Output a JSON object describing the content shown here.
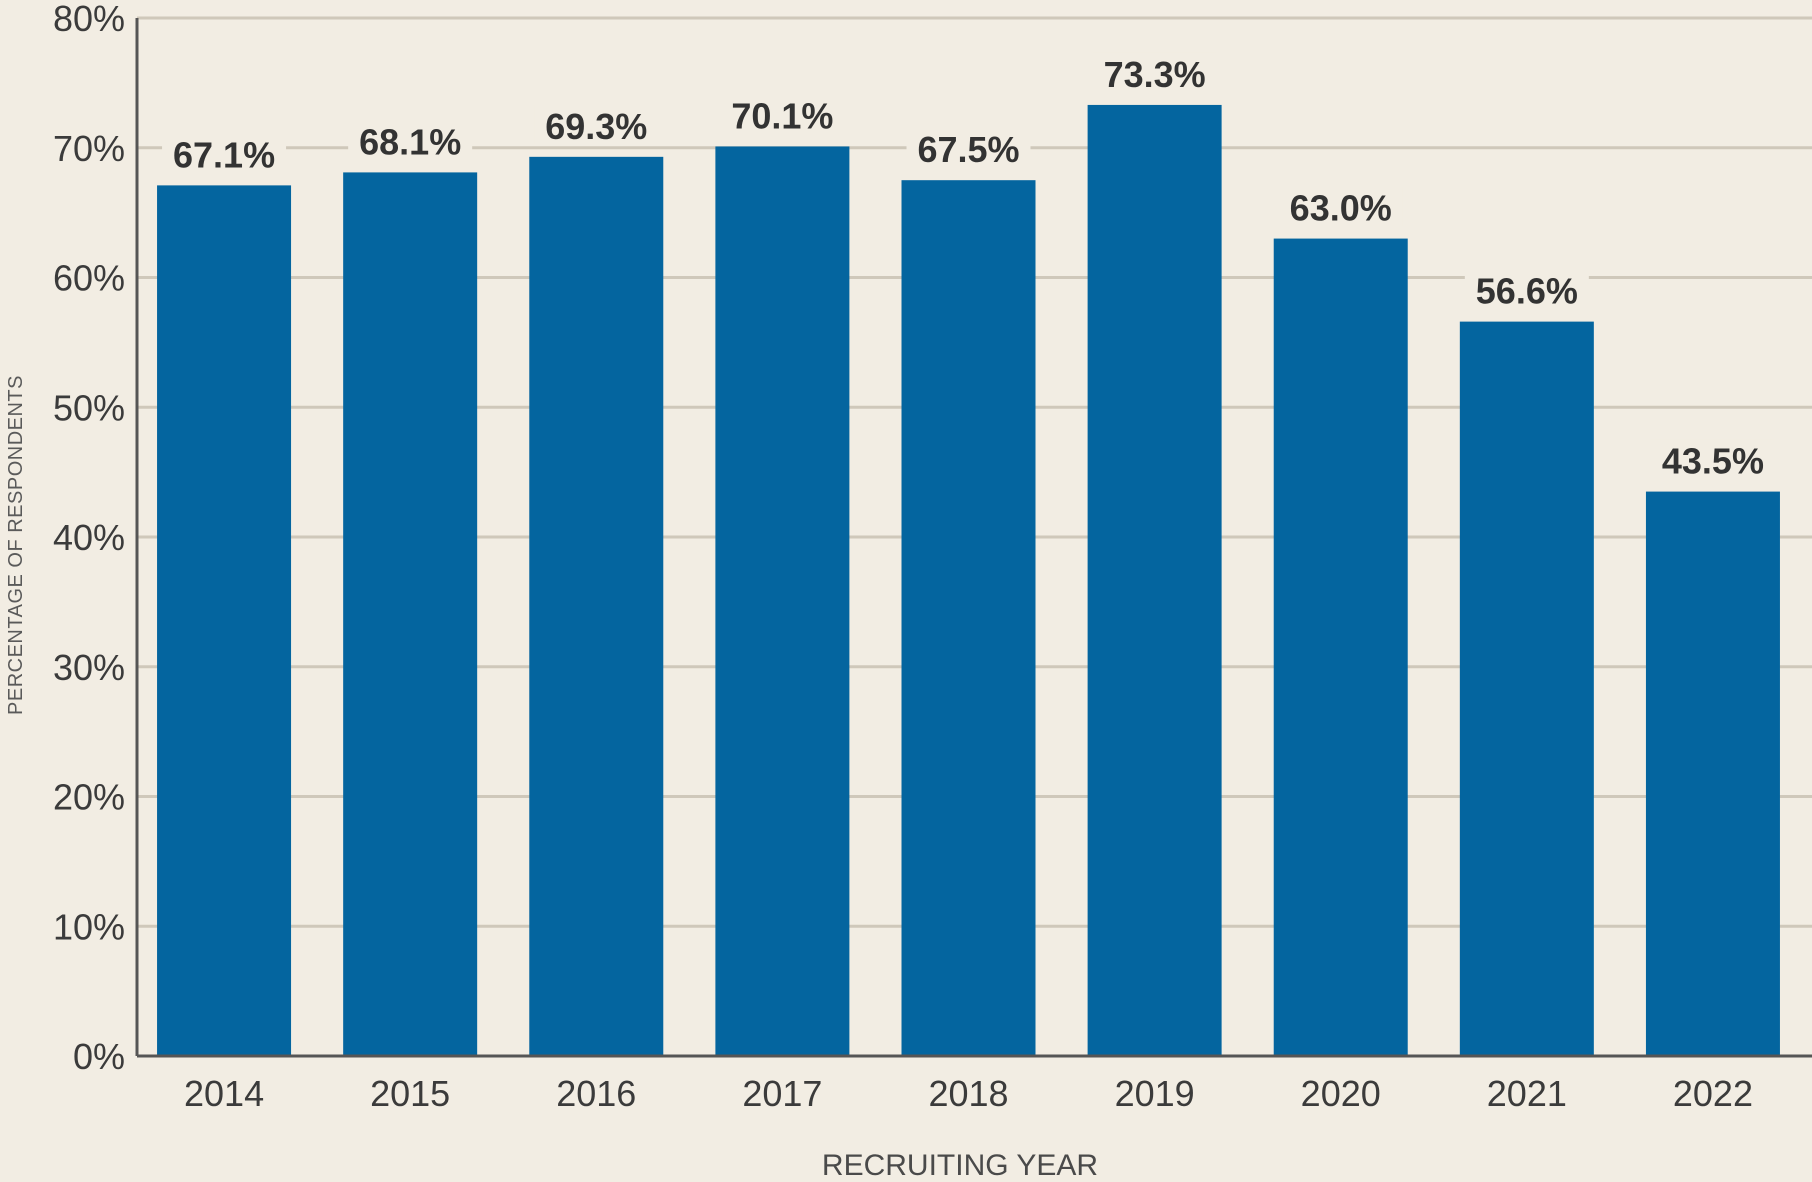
{
  "chart_data": {
    "type": "bar",
    "categories": [
      "2014",
      "2015",
      "2016",
      "2017",
      "2018",
      "2019",
      "2020",
      "2021",
      "2022"
    ],
    "values": [
      67.1,
      68.1,
      69.3,
      70.1,
      67.5,
      73.3,
      63.0,
      56.6,
      43.5
    ],
    "value_labels": [
      "67.1%",
      "68.1%",
      "69.3%",
      "70.1%",
      "67.5%",
      "73.3%",
      "63.0%",
      "56.6%",
      "43.5%"
    ],
    "xlabel": "RECRUITING YEAR",
    "ylabel": "PERCENTAGE OF RESPONDENTS",
    "ylim": [
      0,
      80
    ],
    "yticks": [
      0,
      10,
      20,
      30,
      40,
      50,
      60,
      70,
      80
    ],
    "ytick_labels": [
      "0%",
      "10%",
      "20%",
      "30%",
      "40%",
      "50%",
      "60%",
      "70%",
      "80%"
    ],
    "grid": true,
    "bar_color": "#04659f",
    "grid_color": "#cfc8ba",
    "axis_color": "#555555",
    "background": "#f2ede3"
  }
}
